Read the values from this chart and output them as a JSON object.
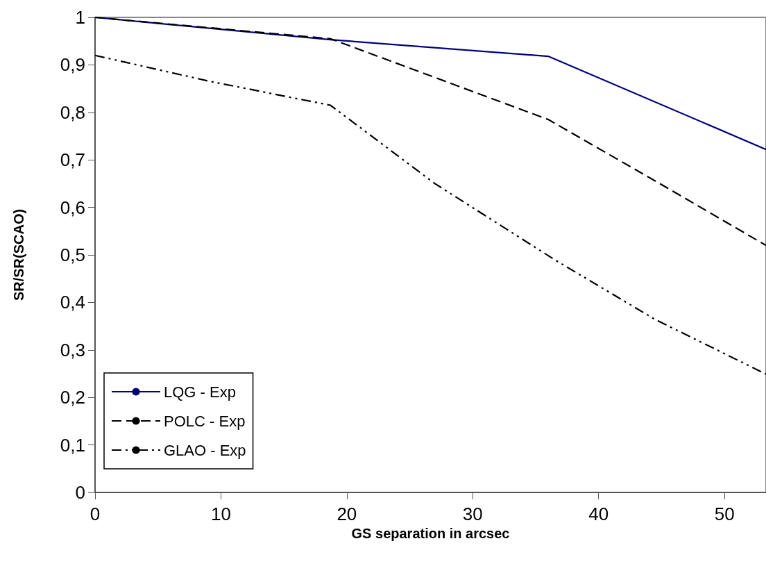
{
  "chart_data": {
    "type": "line",
    "xlabel": "GS separation in arcsec",
    "ylabel": "SR/SR(SCAO)",
    "xlim": [
      0,
      53.3
    ],
    "xticks": [
      0,
      10,
      20,
      30,
      40,
      50
    ],
    "ylim": [
      0,
      1
    ],
    "yticks": [
      {
        "value": 0,
        "label": "0"
      },
      {
        "value": 0.1,
        "label": "0,1"
      },
      {
        "value": 0.2,
        "label": "0,2"
      },
      {
        "value": 0.3,
        "label": "0,3"
      },
      {
        "value": 0.4,
        "label": "0,4"
      },
      {
        "value": 0.5,
        "label": "0,5"
      },
      {
        "value": 0.6,
        "label": "0,6"
      },
      {
        "value": 0.7,
        "label": "0,7"
      },
      {
        "value": 0.8,
        "label": "0,8"
      },
      {
        "value": 0.9,
        "label": "0,9"
      },
      {
        "value": 1,
        "label": "1"
      }
    ],
    "grid": false,
    "legend": "bottom left",
    "marker": "none",
    "series": [
      {
        "name": "LQG - Exp",
        "color": "#000080",
        "line_style": "solid",
        "x": [
          0,
          18.7,
          36,
          53.3
        ],
        "values": [
          1,
          0.953,
          0.918,
          0.722
        ]
      },
      {
        "name": "POLC - Exp",
        "color": "#000000",
        "line_style": "dashed",
        "x": [
          0,
          18.7,
          36,
          45,
          53.3
        ],
        "values": [
          1,
          0.955,
          0.785,
          0.648,
          0.52
        ]
      },
      {
        "name": "GLAO - Exp",
        "color": "#000000",
        "line_style": "dashdotdot",
        "x": [
          0,
          9,
          18.7,
          27,
          36.5,
          44.5,
          53.3
        ],
        "values": [
          0.92,
          0.866,
          0.815,
          0.65,
          0.49,
          0.364,
          0.249
        ]
      }
    ]
  }
}
